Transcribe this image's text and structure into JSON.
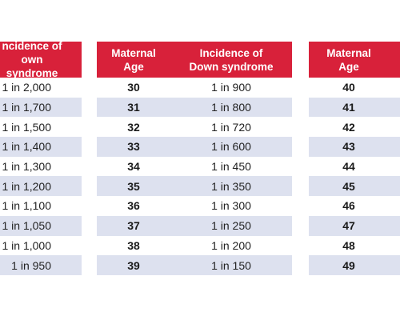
{
  "left_table": {
    "header_incidence_line1": "ncidence of",
    "header_incidence_line2": "own syndrome",
    "rows": [
      "1 in 2,000",
      "1 in 1,700",
      "1 in 1,500",
      "1 in 1,400",
      "1 in 1,300",
      "1 in 1,200",
      "1 in 1,100",
      "1 in 1,050",
      "1 in 1,000",
      "1 in 950"
    ]
  },
  "middle_table": {
    "header_age_line1": "Maternal",
    "header_age_line2": "Age",
    "header_incidence_line1": "Incidence of",
    "header_incidence_line2": "Down syndrome",
    "rows": [
      {
        "age": "30",
        "incidence": "1 in 900"
      },
      {
        "age": "31",
        "incidence": "1 in 800"
      },
      {
        "age": "32",
        "incidence": "1 in 720"
      },
      {
        "age": "33",
        "incidence": "1 in 600"
      },
      {
        "age": "34",
        "incidence": "1 in 450"
      },
      {
        "age": "35",
        "incidence": "1 in 350"
      },
      {
        "age": "36",
        "incidence": "1 in 300"
      },
      {
        "age": "37",
        "incidence": "1 in 250"
      },
      {
        "age": "38",
        "incidence": "1 in 200"
      },
      {
        "age": "39",
        "incidence": "1 in 150"
      }
    ]
  },
  "right_table": {
    "header_age_line1": "Maternal",
    "header_age_line2": "Age",
    "rows": [
      "40",
      "41",
      "42",
      "43",
      "44",
      "45",
      "46",
      "47",
      "48",
      "49"
    ]
  },
  "colors": {
    "header_bg": "#d8213a",
    "stripe_bg": "#dde1ef",
    "header_text": "#ffffff"
  }
}
